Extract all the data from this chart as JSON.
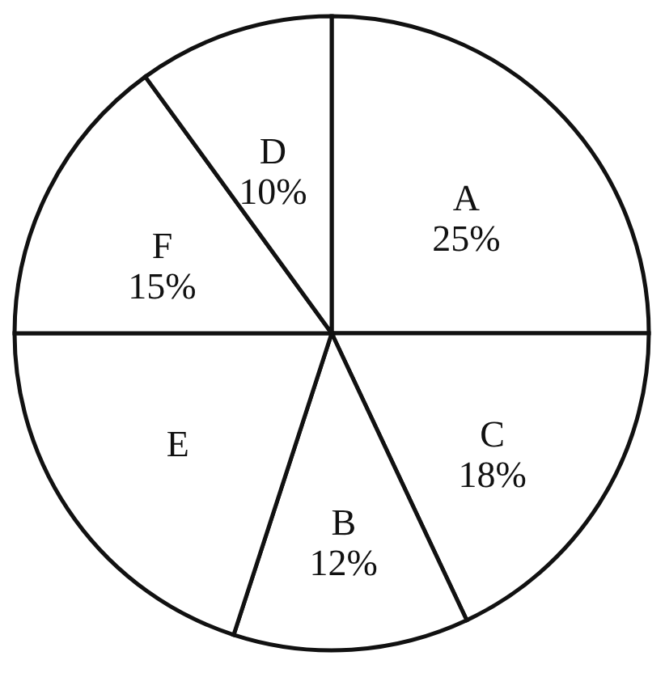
{
  "chart_data": {
    "type": "pie",
    "categories": [
      "A",
      "C",
      "B",
      "E",
      "F",
      "D"
    ],
    "values": [
      25,
      18,
      12,
      20,
      15,
      10
    ],
    "value_labels": [
      "25%",
      "18%",
      "12%",
      null,
      "15%",
      "10%"
    ],
    "colors": [
      "#ffffff",
      "#ffffff",
      "#ffffff",
      "#ffffff",
      "#ffffff",
      "#ffffff"
    ],
    "legend": false
  }
}
